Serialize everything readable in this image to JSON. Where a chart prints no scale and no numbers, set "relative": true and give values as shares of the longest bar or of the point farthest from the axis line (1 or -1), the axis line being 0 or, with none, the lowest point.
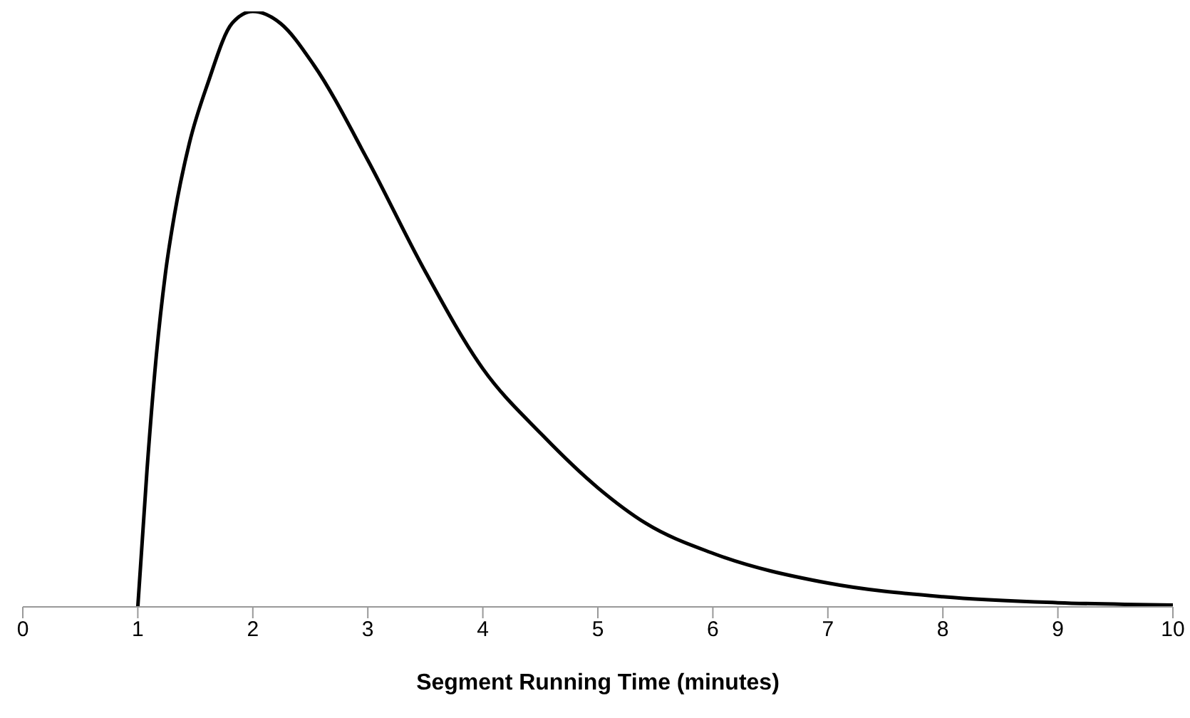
{
  "chart_data": {
    "type": "line",
    "xlabel": "Segment Running Time (minutes)",
    "relative": true,
    "xlim": [
      0,
      10
    ],
    "xticks": [
      0,
      1,
      2,
      3,
      4,
      5,
      6,
      7,
      8,
      9,
      10
    ],
    "marker": "none",
    "line_style": "solid",
    "series": [
      {
        "color": "#000000",
        "x": [
          1,
          1.08,
          1.16,
          1.24,
          1.32,
          1.45,
          1.61,
          1.82,
          2,
          2.24,
          2.53,
          3,
          3.48,
          4,
          4.51,
          5,
          5.42,
          6,
          7,
          8,
          9,
          10
        ],
        "values": [
          0,
          0.23,
          0.42,
          0.56,
          0.66,
          0.78,
          0.88,
          0.98,
          1,
          0.98,
          0.91,
          0.75,
          0.57,
          0.4,
          0.29,
          0.2,
          0.14,
          0.09,
          0.04,
          0.017,
          0.007,
          0.003
        ]
      }
    ]
  }
}
